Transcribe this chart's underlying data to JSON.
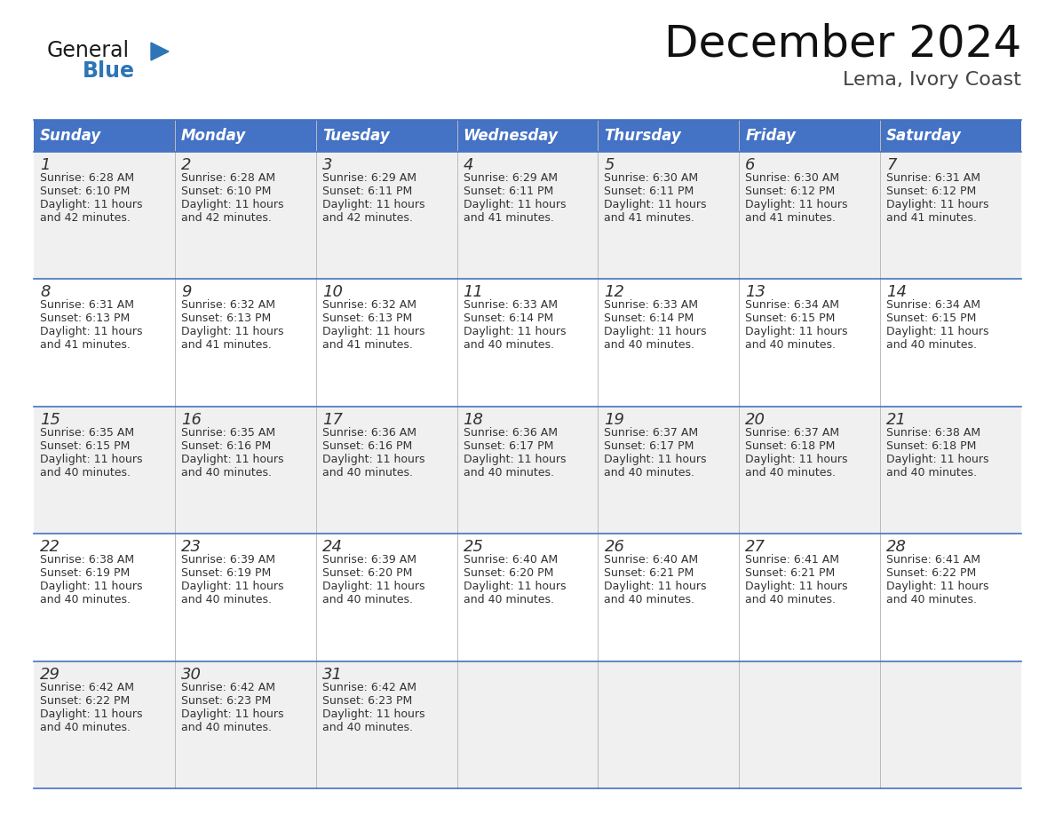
{
  "title": "December 2024",
  "subtitle": "Lema, Ivory Coast",
  "header_color": "#4472C4",
  "header_text_color": "#FFFFFF",
  "days_of_week": [
    "Sunday",
    "Monday",
    "Tuesday",
    "Wednesday",
    "Thursday",
    "Friday",
    "Saturday"
  ],
  "cell_bg_even": "#F0F0F0",
  "cell_bg_odd": "#FFFFFF",
  "grid_line_color": "#4472C4",
  "day_number_color": "#333333",
  "text_color": "#333333",
  "calendar_data": [
    [
      {
        "day": "1",
        "sunrise": "6:28 AM",
        "sunset": "6:10 PM",
        "dl1": "Daylight: 11 hours",
        "dl2": "and 42 minutes."
      },
      {
        "day": "2",
        "sunrise": "6:28 AM",
        "sunset": "6:10 PM",
        "dl1": "Daylight: 11 hours",
        "dl2": "and 42 minutes."
      },
      {
        "day": "3",
        "sunrise": "6:29 AM",
        "sunset": "6:11 PM",
        "dl1": "Daylight: 11 hours",
        "dl2": "and 42 minutes."
      },
      {
        "day": "4",
        "sunrise": "6:29 AM",
        "sunset": "6:11 PM",
        "dl1": "Daylight: 11 hours",
        "dl2": "and 41 minutes."
      },
      {
        "day": "5",
        "sunrise": "6:30 AM",
        "sunset": "6:11 PM",
        "dl1": "Daylight: 11 hours",
        "dl2": "and 41 minutes."
      },
      {
        "day": "6",
        "sunrise": "6:30 AM",
        "sunset": "6:12 PM",
        "dl1": "Daylight: 11 hours",
        "dl2": "and 41 minutes."
      },
      {
        "day": "7",
        "sunrise": "6:31 AM",
        "sunset": "6:12 PM",
        "dl1": "Daylight: 11 hours",
        "dl2": "and 41 minutes."
      }
    ],
    [
      {
        "day": "8",
        "sunrise": "6:31 AM",
        "sunset": "6:13 PM",
        "dl1": "Daylight: 11 hours",
        "dl2": "and 41 minutes."
      },
      {
        "day": "9",
        "sunrise": "6:32 AM",
        "sunset": "6:13 PM",
        "dl1": "Daylight: 11 hours",
        "dl2": "and 41 minutes."
      },
      {
        "day": "10",
        "sunrise": "6:32 AM",
        "sunset": "6:13 PM",
        "dl1": "Daylight: 11 hours",
        "dl2": "and 41 minutes."
      },
      {
        "day": "11",
        "sunrise": "6:33 AM",
        "sunset": "6:14 PM",
        "dl1": "Daylight: 11 hours",
        "dl2": "and 40 minutes."
      },
      {
        "day": "12",
        "sunrise": "6:33 AM",
        "sunset": "6:14 PM",
        "dl1": "Daylight: 11 hours",
        "dl2": "and 40 minutes."
      },
      {
        "day": "13",
        "sunrise": "6:34 AM",
        "sunset": "6:15 PM",
        "dl1": "Daylight: 11 hours",
        "dl2": "and 40 minutes."
      },
      {
        "day": "14",
        "sunrise": "6:34 AM",
        "sunset": "6:15 PM",
        "dl1": "Daylight: 11 hours",
        "dl2": "and 40 minutes."
      }
    ],
    [
      {
        "day": "15",
        "sunrise": "6:35 AM",
        "sunset": "6:15 PM",
        "dl1": "Daylight: 11 hours",
        "dl2": "and 40 minutes."
      },
      {
        "day": "16",
        "sunrise": "6:35 AM",
        "sunset": "6:16 PM",
        "dl1": "Daylight: 11 hours",
        "dl2": "and 40 minutes."
      },
      {
        "day": "17",
        "sunrise": "6:36 AM",
        "sunset": "6:16 PM",
        "dl1": "Daylight: 11 hours",
        "dl2": "and 40 minutes."
      },
      {
        "day": "18",
        "sunrise": "6:36 AM",
        "sunset": "6:17 PM",
        "dl1": "Daylight: 11 hours",
        "dl2": "and 40 minutes."
      },
      {
        "day": "19",
        "sunrise": "6:37 AM",
        "sunset": "6:17 PM",
        "dl1": "Daylight: 11 hours",
        "dl2": "and 40 minutes."
      },
      {
        "day": "20",
        "sunrise": "6:37 AM",
        "sunset": "6:18 PM",
        "dl1": "Daylight: 11 hours",
        "dl2": "and 40 minutes."
      },
      {
        "day": "21",
        "sunrise": "6:38 AM",
        "sunset": "6:18 PM",
        "dl1": "Daylight: 11 hours",
        "dl2": "and 40 minutes."
      }
    ],
    [
      {
        "day": "22",
        "sunrise": "6:38 AM",
        "sunset": "6:19 PM",
        "dl1": "Daylight: 11 hours",
        "dl2": "and 40 minutes."
      },
      {
        "day": "23",
        "sunrise": "6:39 AM",
        "sunset": "6:19 PM",
        "dl1": "Daylight: 11 hours",
        "dl2": "and 40 minutes."
      },
      {
        "day": "24",
        "sunrise": "6:39 AM",
        "sunset": "6:20 PM",
        "dl1": "Daylight: 11 hours",
        "dl2": "and 40 minutes."
      },
      {
        "day": "25",
        "sunrise": "6:40 AM",
        "sunset": "6:20 PM",
        "dl1": "Daylight: 11 hours",
        "dl2": "and 40 minutes."
      },
      {
        "day": "26",
        "sunrise": "6:40 AM",
        "sunset": "6:21 PM",
        "dl1": "Daylight: 11 hours",
        "dl2": "and 40 minutes."
      },
      {
        "day": "27",
        "sunrise": "6:41 AM",
        "sunset": "6:21 PM",
        "dl1": "Daylight: 11 hours",
        "dl2": "and 40 minutes."
      },
      {
        "day": "28",
        "sunrise": "6:41 AM",
        "sunset": "6:22 PM",
        "dl1": "Daylight: 11 hours",
        "dl2": "and 40 minutes."
      }
    ],
    [
      {
        "day": "29",
        "sunrise": "6:42 AM",
        "sunset": "6:22 PM",
        "dl1": "Daylight: 11 hours",
        "dl2": "and 40 minutes."
      },
      {
        "day": "30",
        "sunrise": "6:42 AM",
        "sunset": "6:23 PM",
        "dl1": "Daylight: 11 hours",
        "dl2": "and 40 minutes."
      },
      {
        "day": "31",
        "sunrise": "6:42 AM",
        "sunset": "6:23 PM",
        "dl1": "Daylight: 11 hours",
        "dl2": "and 40 minutes."
      },
      null,
      null,
      null,
      null
    ]
  ],
  "logo_color1": "#1a1a1a",
  "logo_color2": "#2E75B6",
  "logo_triangle_color": "#2E75B6",
  "title_fontsize": 36,
  "subtitle_fontsize": 16,
  "header_fontsize": 12,
  "day_number_fontsize": 13,
  "cell_text_fontsize": 9
}
